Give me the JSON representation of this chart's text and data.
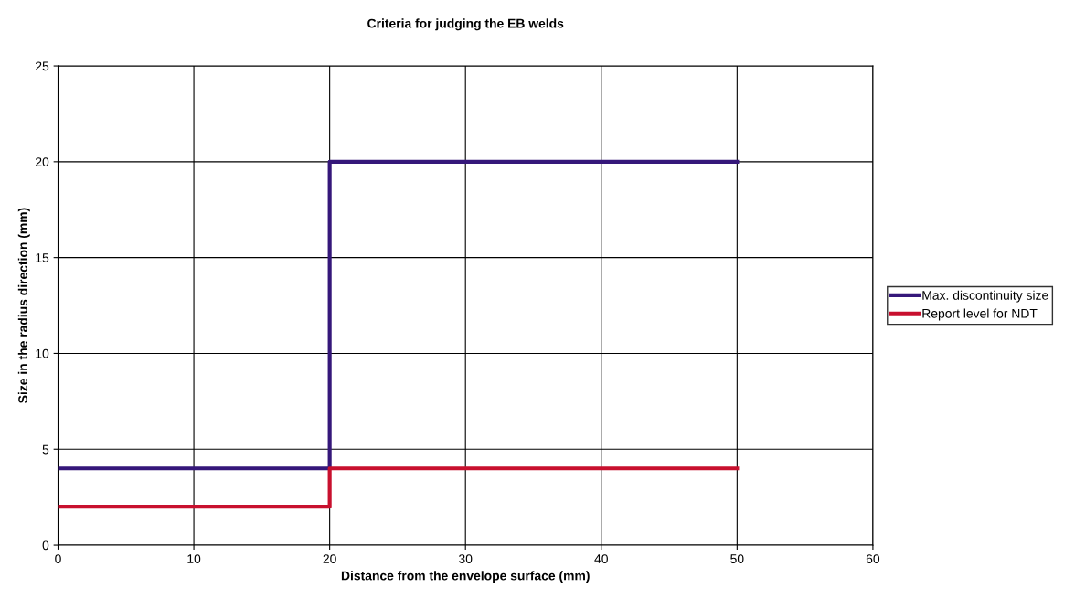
{
  "chart_data": {
    "type": "line",
    "title": "Criteria for judging the EB welds",
    "xlabel": "Distance from the envelope surface (mm)",
    "ylabel": "Size in the radius direction (mm)",
    "series": [
      {
        "name": "Max. discontinuity size",
        "color": "#35177a",
        "x": [
          0,
          4,
          20,
          20,
          50
        ],
        "values": [
          4,
          4,
          4,
          20,
          20
        ]
      },
      {
        "name": "Report level for NDT",
        "color": "#c8102e",
        "x": [
          0,
          4,
          20,
          20,
          50
        ],
        "values": [
          2,
          2,
          2,
          4,
          4
        ]
      }
    ],
    "xlim": [
      0,
      60
    ],
    "xticks": [
      0,
      10,
      20,
      30,
      40,
      50,
      60
    ],
    "ylim": [
      0,
      25
    ],
    "yticks": [
      0,
      5,
      10,
      15,
      20,
      25
    ],
    "grid": true,
    "legend": "right",
    "marker": "none",
    "line_style": "solid"
  }
}
